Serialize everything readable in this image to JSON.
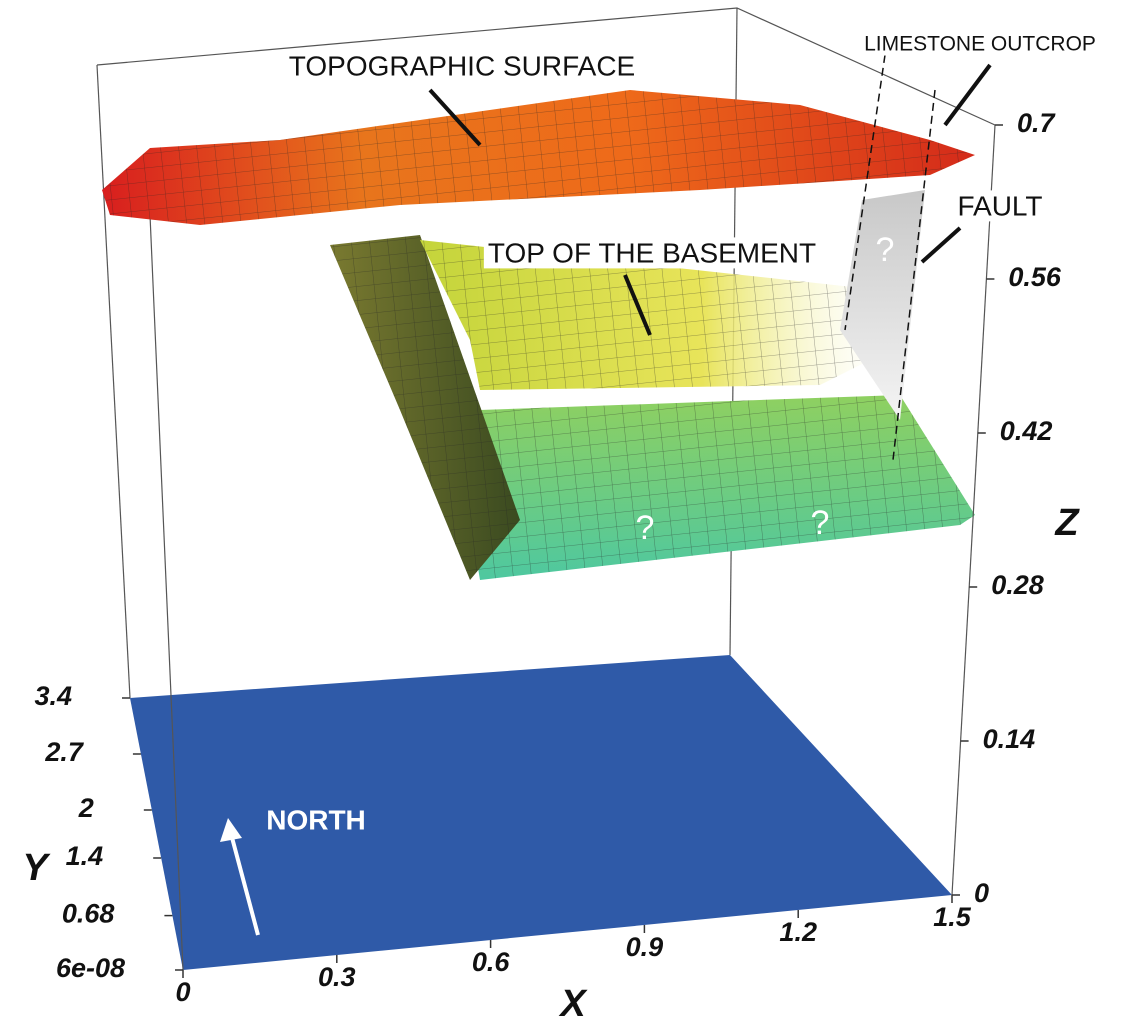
{
  "chart_data": {
    "type": "surface3d",
    "annotations": [
      "TOPOGRAPHIC SURFACE",
      "LIMESTONE OUTCROP",
      "FAULT",
      "TOP OF THE BASEMENT",
      "NORTH",
      "?",
      "?",
      "?"
    ],
    "xlabel": "X",
    "ylabel": "Y",
    "zlabel": "Z",
    "xlim": [
      0,
      1.5
    ],
    "xticks": [
      0,
      0.3,
      0.6,
      0.9,
      1.2,
      1.5
    ],
    "ylim": [
      6e-08,
      3.4
    ],
    "yticks": [
      {
        "value": 6e-08,
        "label": "6e-08"
      },
      0.68,
      1.4,
      2,
      2.7,
      3.4
    ],
    "zlim": [
      0,
      0.7
    ],
    "zticks": [
      0,
      0.14,
      0.28,
      0.42,
      0.56,
      0.7
    ],
    "floor_color": "#2f5aa8"
  }
}
